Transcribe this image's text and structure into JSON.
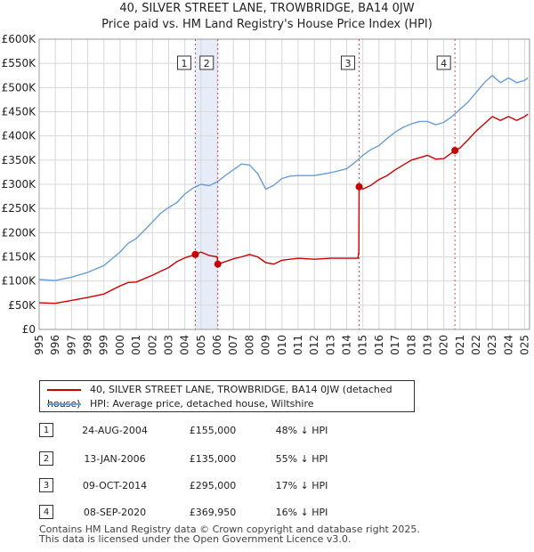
{
  "title_line1": "40, SILVER STREET LANE, TROWBRIDGE, BA14 0JW",
  "title_line2": "Price paid vs. HM Land Registry's House Price Index (HPI)",
  "chart_data": {
    "type": "line",
    "xlim": [
      1995,
      2025.3
    ],
    "ylim": [
      0,
      600000
    ],
    "y_ticks": [
      0,
      50000,
      100000,
      150000,
      200000,
      250000,
      300000,
      350000,
      400000,
      450000,
      500000,
      550000,
      600000
    ],
    "y_tick_labels": [
      "£0",
      "£50K",
      "£100K",
      "£150K",
      "£200K",
      "£250K",
      "£300K",
      "£350K",
      "£400K",
      "£450K",
      "£500K",
      "£550K",
      "£600K"
    ],
    "x_ticks": [
      1995,
      1996,
      1997,
      1998,
      1999,
      2000,
      2001,
      2002,
      2003,
      2004,
      2005,
      2006,
      2007,
      2008,
      2009,
      2010,
      2011,
      2012,
      2013,
      2014,
      2015,
      2016,
      2017,
      2018,
      2019,
      2020,
      2021,
      2022,
      2023,
      2024,
      2025
    ],
    "grid": true,
    "shaded_spans": [
      [
        2004.65,
        2006.04
      ]
    ],
    "series": [
      {
        "name": "40, SILVER STREET LANE, TROWBRIDGE, BA14 0JW (detached house)",
        "color": "#cc0000",
        "x": [
          1995,
          1996,
          1997,
          1998,
          1999,
          2000,
          2000.5,
          2001,
          2002,
          2002.5,
          2003,
          2003.5,
          2004,
          2004.65,
          2005,
          2005.5,
          2006.0,
          2006.04,
          2006.5,
          2007,
          2007.5,
          2008,
          2008.5,
          2009,
          2009.5,
          2010,
          2011,
          2012,
          2013,
          2014,
          2014.7,
          2014.75,
          2014.77,
          2015,
          2015.5,
          2016,
          2016.5,
          2017,
          2018,
          2019,
          2019.5,
          2020,
          2020.69,
          2021,
          2021.5,
          2022,
          2022.5,
          2023,
          2023.5,
          2024,
          2024.5,
          2025,
          2025.2
        ],
        "values": [
          55000,
          54000,
          60000,
          66000,
          73000,
          90000,
          97000,
          98000,
          112000,
          120000,
          128000,
          140000,
          148000,
          155000,
          160000,
          153000,
          150000,
          135000,
          140000,
          146000,
          150000,
          155000,
          150000,
          138000,
          135000,
          143000,
          147000,
          145000,
          147000,
          147000,
          147000,
          160000,
          295000,
          290000,
          298000,
          310000,
          318000,
          330000,
          350000,
          360000,
          352000,
          353000,
          369950,
          375000,
          392000,
          410000,
          425000,
          440000,
          432000,
          440000,
          432000,
          440000,
          445000
        ]
      },
      {
        "name": "HPI: Average price, detached house, Wiltshire",
        "color": "#6a9ed6",
        "x": [
          1995,
          1996,
          1997,
          1998,
          1999,
          2000,
          2000.5,
          2001,
          2002,
          2002.5,
          2003,
          2003.5,
          2004,
          2004.5,
          2005,
          2005.5,
          2006,
          2006.5,
          2007,
          2007.5,
          2008,
          2008.5,
          2009,
          2009.5,
          2010,
          2010.5,
          2011,
          2012,
          2013,
          2014,
          2014.5,
          2015,
          2015.5,
          2016,
          2016.5,
          2017,
          2017.5,
          2018,
          2018.5,
          2019,
          2019.5,
          2020,
          2020.5,
          2021,
          2021.5,
          2022,
          2022.5,
          2023,
          2023.5,
          2024,
          2024.5,
          2025,
          2025.2
        ],
        "values": [
          103000,
          101000,
          108000,
          118000,
          132000,
          160000,
          178000,
          188000,
          222000,
          240000,
          252000,
          262000,
          280000,
          292000,
          300000,
          297000,
          305000,
          318000,
          330000,
          342000,
          340000,
          322000,
          290000,
          298000,
          312000,
          317000,
          318000,
          318000,
          324000,
          332000,
          345000,
          360000,
          372000,
          380000,
          395000,
          408000,
          418000,
          425000,
          430000,
          430000,
          423000,
          428000,
          440000,
          455000,
          470000,
          490000,
          510000,
          525000,
          510000,
          520000,
          510000,
          515000,
          520000
        ]
      }
    ],
    "transactions": [
      {
        "num": "1",
        "year": 2004.65,
        "value": 155000
      },
      {
        "num": "2",
        "year": 2006.04,
        "value": 135000
      },
      {
        "num": "3",
        "year": 2014.77,
        "value": 295000
      },
      {
        "num": "4",
        "year": 2020.69,
        "value": 369950
      }
    ]
  },
  "legend": {
    "property_label": "40, SILVER STREET LANE, TROWBRIDGE, BA14 0JW (detached house)",
    "hpi_label": "HPI: Average price, detached house, Wiltshire",
    "property_color": "#cc0000",
    "hpi_color": "#6a9ed6"
  },
  "table": [
    {
      "num": "1",
      "date": "24-AUG-2004",
      "price": "£155,000",
      "hpi": "48% ↓ HPI"
    },
    {
      "num": "2",
      "date": "13-JAN-2006",
      "price": "£135,000",
      "hpi": "55% ↓ HPI"
    },
    {
      "num": "3",
      "date": "09-OCT-2014",
      "price": "£295,000",
      "hpi": "17% ↓ HPI"
    },
    {
      "num": "4",
      "date": "08-SEP-2020",
      "price": "£369,950",
      "hpi": "16% ↓ HPI"
    }
  ],
  "footer_line1": "Contains HM Land Registry data © Crown copyright and database right 2025.",
  "footer_line2": "This data is licensed under the Open Government Licence v3.0."
}
